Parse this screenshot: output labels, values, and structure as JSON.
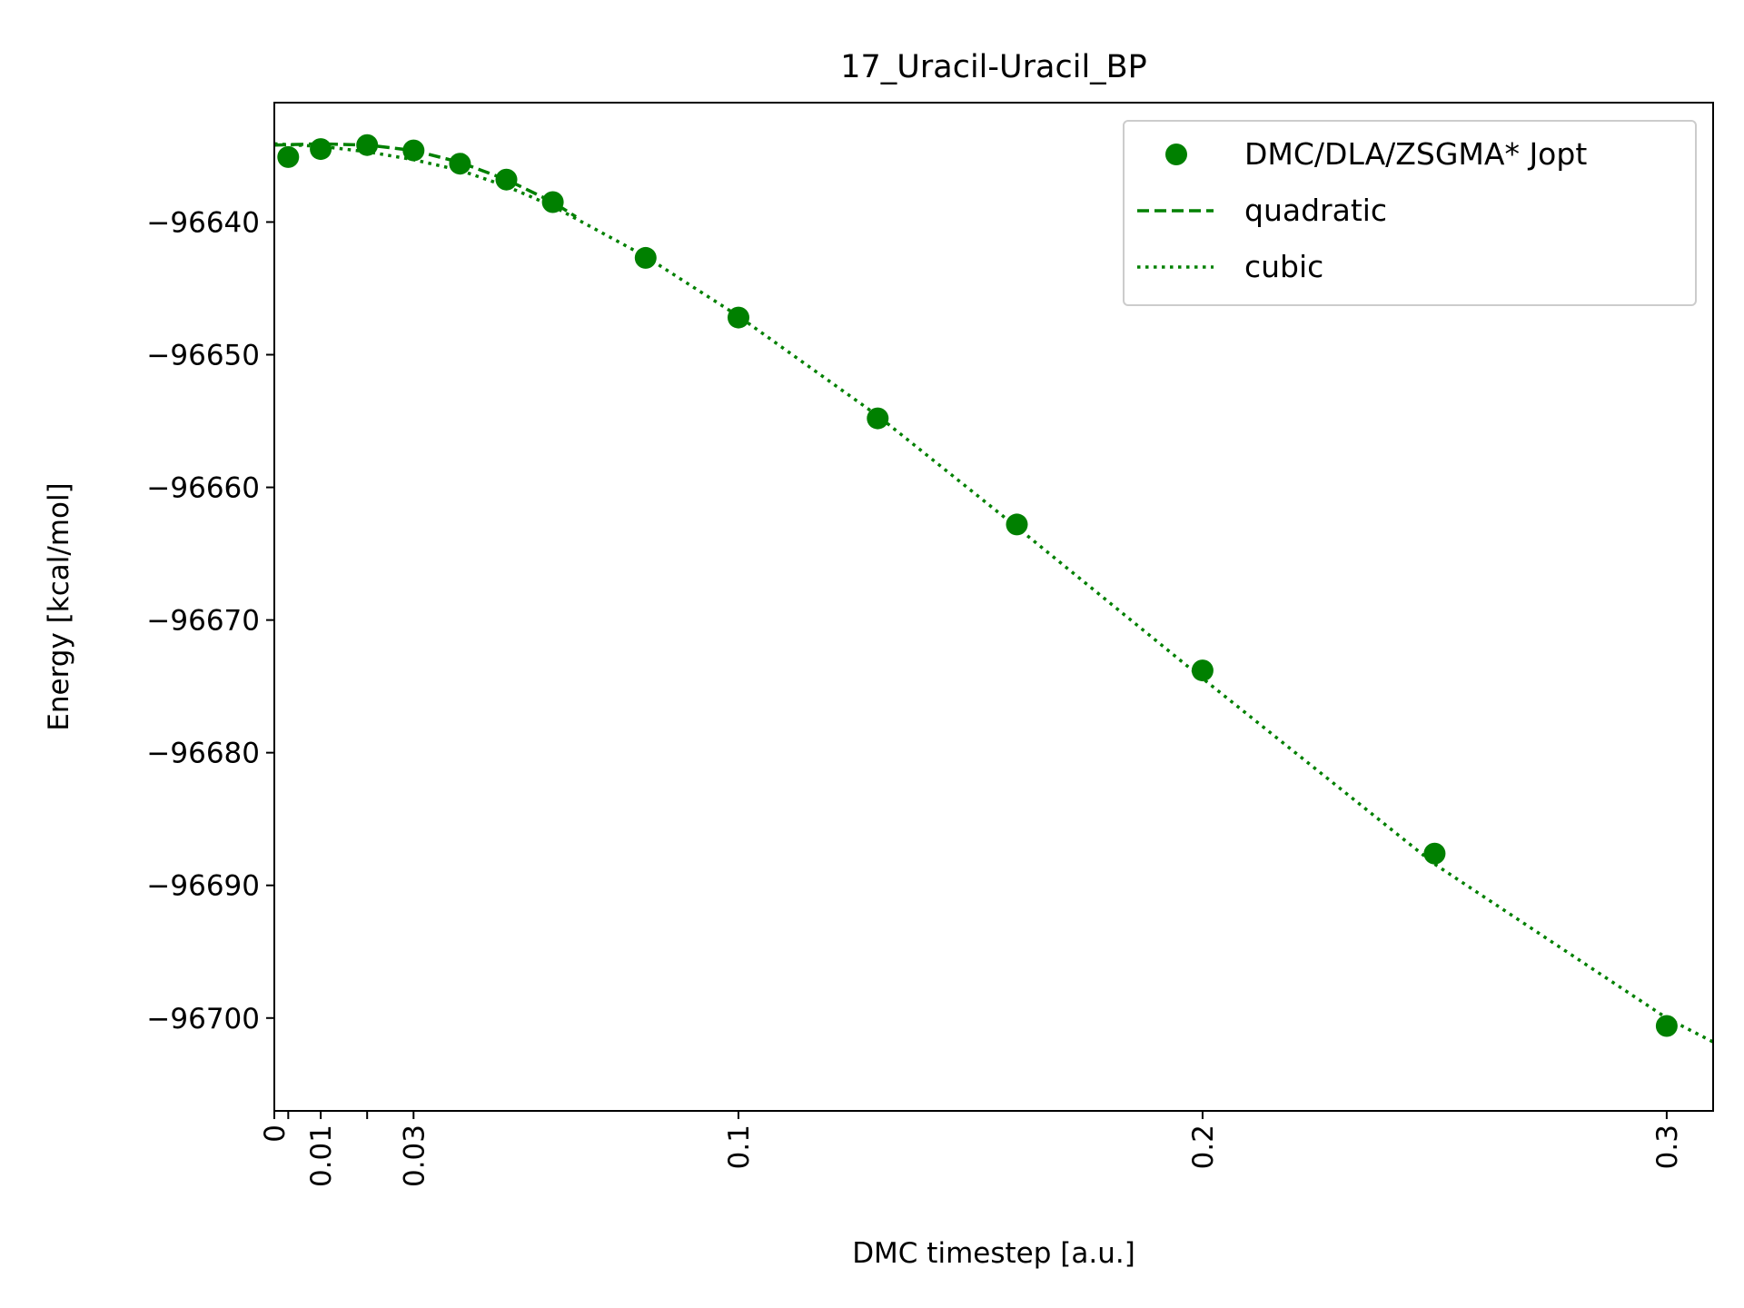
{
  "chart_data": {
    "type": "scatter",
    "title": "17_Uracil-Uracil_BP",
    "xlabel": "DMC timestep [a.u.]",
    "ylabel": "Energy [kcal/mol]",
    "xlim": [
      0,
      0.31
    ],
    "ylim": [
      -96707,
      -96631
    ],
    "grid": false,
    "legend_position": "top-right",
    "color": "#008000",
    "x_ticks": [
      {
        "value": 0,
        "label": "0"
      },
      {
        "value": 0.003,
        "label": ""
      },
      {
        "value": 0.01,
        "label": "0.01"
      },
      {
        "value": 0.02,
        "label": ""
      },
      {
        "value": 0.03,
        "label": "0.03"
      },
      {
        "value": 0.1,
        "label": "0.1"
      },
      {
        "value": 0.2,
        "label": "0.2"
      },
      {
        "value": 0.3,
        "label": "0.3"
      }
    ],
    "y_ticks": [
      {
        "value": -96640,
        "label": "−96640"
      },
      {
        "value": -96650,
        "label": "−96650"
      },
      {
        "value": -96660,
        "label": "−96660"
      },
      {
        "value": -96670,
        "label": "−96670"
      },
      {
        "value": -96680,
        "label": "−96680"
      },
      {
        "value": -96690,
        "label": "−96690"
      },
      {
        "value": -96700,
        "label": "−96700"
      }
    ],
    "series": [
      {
        "name": "DMC/DLA/ZSGMA* Jopt",
        "style": "markers",
        "x": [
          0.003,
          0.01,
          0.02,
          0.03,
          0.04,
          0.05,
          0.06,
          0.08,
          0.1,
          0.13,
          0.16,
          0.2,
          0.25,
          0.3
        ],
        "y": [
          -96635.1,
          -96634.5,
          -96634.2,
          -96634.6,
          -96635.6,
          -96636.8,
          -96638.5,
          -96642.7,
          -96647.2,
          -96654.8,
          -96662.8,
          -96673.8,
          -96687.6,
          -96700.6
        ]
      },
      {
        "name": "quadratic",
        "style": "dashed",
        "x": [
          0,
          0.01,
          0.02,
          0.03,
          0.04,
          0.05,
          0.06,
          0.065
        ],
        "y": [
          -96634.2,
          -96634.1,
          -96634.2,
          -96634.6,
          -96635.5,
          -96636.8,
          -96638.5,
          -96639.6
        ]
      },
      {
        "name": "cubic",
        "style": "dotted",
        "x": [
          0,
          0.01,
          0.02,
          0.03,
          0.04,
          0.05,
          0.06,
          0.08,
          0.1,
          0.13,
          0.16,
          0.2,
          0.25,
          0.3,
          0.31
        ],
        "y": [
          -96634.1,
          -96634.3,
          -96634.7,
          -96635.3,
          -96636.1,
          -96637.3,
          -96638.8,
          -96642.6,
          -96647.1,
          -96654.6,
          -96663.0,
          -96674.4,
          -96688.4,
          -96700.0,
          -96701.8
        ]
      }
    ]
  }
}
